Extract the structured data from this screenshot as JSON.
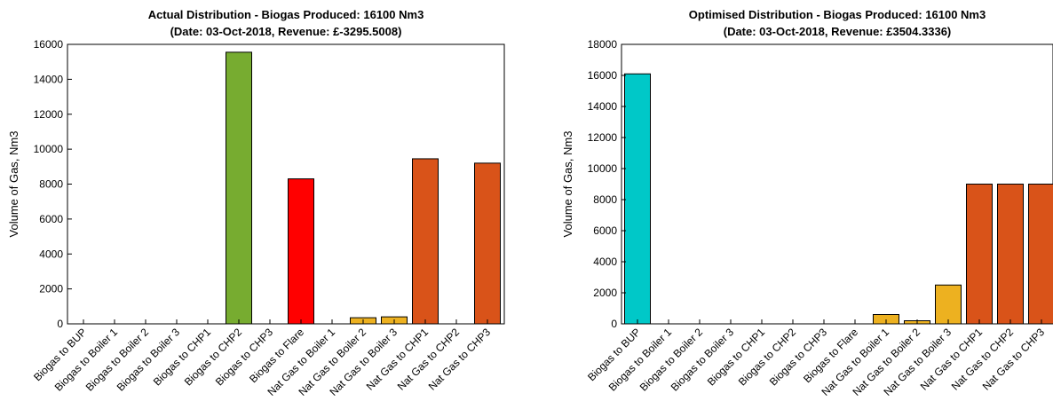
{
  "chart_data": [
    {
      "type": "bar",
      "title": "Actual Distribution - Biogas Produced: 16100 Nm3",
      "subtitle": "(Date: 03-Oct-2018, Revenue: £-3295.5008)",
      "xlabel": "",
      "ylabel": "Volume of Gas, Nm3",
      "ylim": [
        0,
        16000
      ],
      "yticks": [
        0,
        2000,
        4000,
        6000,
        8000,
        10000,
        12000,
        14000,
        16000
      ],
      "grid": false,
      "categories": [
        "Biogas to BUP",
        "Biogas to Boiler 1",
        "Biogas to Boiler 2",
        "Biogas to Boiler 3",
        "Biogas to CHP1",
        "Biogas to CHP2",
        "Biogas to CHP3",
        "Biogas to Flare",
        "Nat Gas to Boiler 1",
        "Nat Gas to Boiler 2",
        "Nat Gas to Boiler 3",
        "Nat Gas to CHP1",
        "Nat Gas to CHP2",
        "Nat Gas to CHP3"
      ],
      "values": [
        0,
        0,
        0,
        0,
        0,
        15550,
        0,
        8300,
        0,
        350,
        400,
        9450,
        0,
        9200
      ],
      "colors": [
        "#00c8c8",
        "#edb120",
        "#edb120",
        "#edb120",
        "#77ac30",
        "#77ac30",
        "#77ac30",
        "#ff0000",
        "#edb120",
        "#edb120",
        "#edb120",
        "#d95319",
        "#d95319",
        "#d95319"
      ]
    },
    {
      "type": "bar",
      "title": "Optimised Distribution - Biogas Produced: 16100 Nm3",
      "subtitle": "(Date: 03-Oct-2018, Revenue: £3504.3336)",
      "xlabel": "",
      "ylabel": "Volume of Gas, Nm3",
      "ylim": [
        0,
        18000
      ],
      "yticks": [
        0,
        2000,
        4000,
        6000,
        8000,
        10000,
        12000,
        14000,
        16000,
        18000
      ],
      "grid": false,
      "categories": [
        "Biogas to BUP",
        "Biogas to Boiler 1",
        "Biogas to Boiler 2",
        "Biogas to Boiler 3",
        "Biogas to CHP1",
        "Biogas to CHP2",
        "Biogas to CHP3",
        "Biogas to Flare",
        "Nat Gas to Boiler 1",
        "Nat Gas to Boiler 2",
        "Nat Gas to Boiler 3",
        "Nat Gas to CHP1",
        "Nat Gas to CHP2",
        "Nat Gas to CHP3"
      ],
      "values": [
        16100,
        0,
        0,
        0,
        0,
        0,
        0,
        0,
        600,
        200,
        2500,
        9000,
        9000,
        9000
      ],
      "colors": [
        "#00c8c8",
        "#edb120",
        "#edb120",
        "#edb120",
        "#77ac30",
        "#77ac30",
        "#77ac30",
        "#ff0000",
        "#edb120",
        "#edb120",
        "#edb120",
        "#d95319",
        "#d95319",
        "#d95319"
      ]
    }
  ]
}
